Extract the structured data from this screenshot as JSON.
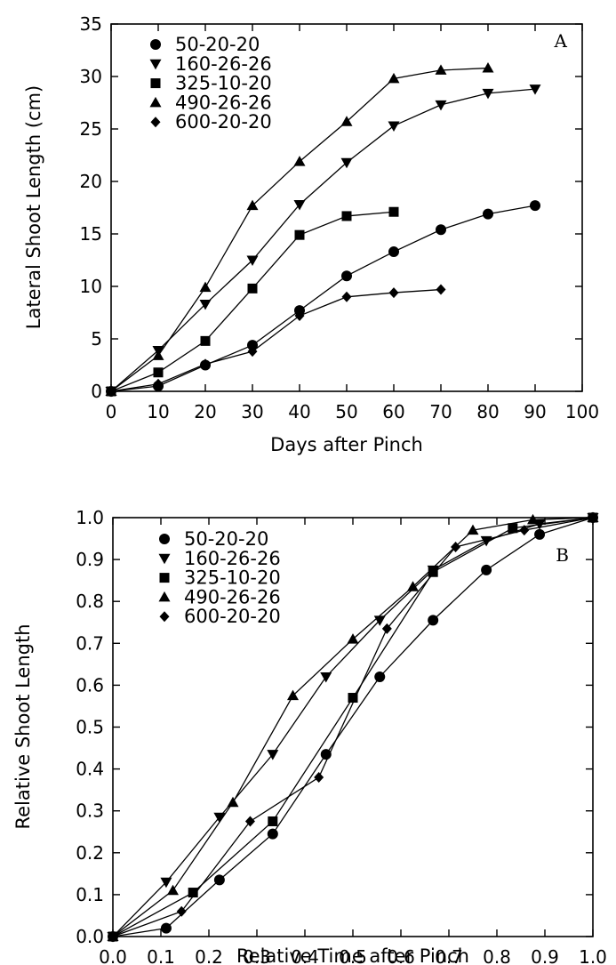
{
  "chart_data": [
    {
      "type": "line",
      "panel_letter": "A",
      "title": "",
      "xlabel": "Days after Pinch",
      "ylabel": "Lateral Shoot Length (cm)",
      "xlim": [
        0,
        100
      ],
      "ylim": [
        0,
        35
      ],
      "xticks": [
        0,
        10,
        20,
        30,
        40,
        50,
        60,
        70,
        80,
        90,
        100
      ],
      "yticks": [
        0,
        5,
        10,
        15,
        20,
        25,
        30,
        35
      ],
      "grid": false,
      "legend_position": "top-left",
      "series": [
        {
          "name": "50-20-20",
          "marker": "circle",
          "x": [
            0,
            10,
            20,
            30,
            40,
            50,
            60,
            70,
            80,
            90
          ],
          "y": [
            0,
            0.5,
            2.5,
            4.4,
            7.7,
            11.0,
            13.3,
            15.4,
            16.9,
            17.7
          ]
        },
        {
          "name": "160-26-26",
          "marker": "triangle-down",
          "x": [
            0,
            10,
            20,
            30,
            40,
            50,
            60,
            70,
            80,
            90
          ],
          "y": [
            0,
            3.9,
            8.3,
            12.5,
            17.8,
            21.8,
            25.3,
            27.3,
            28.4,
            28.8
          ]
        },
        {
          "name": "325-10-20",
          "marker": "square",
          "x": [
            0,
            10,
            20,
            30,
            40,
            50,
            60
          ],
          "y": [
            0,
            1.8,
            4.8,
            9.8,
            14.9,
            16.7,
            17.1
          ]
        },
        {
          "name": "490-26-26",
          "marker": "triangle-up",
          "x": [
            0,
            10,
            20,
            30,
            40,
            50,
            60,
            70,
            80
          ],
          "y": [
            0,
            3.4,
            9.9,
            17.7,
            21.9,
            25.7,
            29.8,
            30.6,
            30.8
          ]
        },
        {
          "name": "600-20-20",
          "marker": "diamond",
          "x": [
            0,
            10,
            20,
            30,
            40,
            50,
            60,
            70
          ],
          "y": [
            0,
            0.7,
            2.6,
            3.8,
            7.2,
            9.0,
            9.4,
            9.7
          ]
        }
      ]
    },
    {
      "type": "line",
      "panel_letter": "B",
      "title": "",
      "xlabel": "Relative Time after Pinch",
      "ylabel": "Relative Shoot Length",
      "xlim": [
        0,
        1
      ],
      "ylim": [
        0,
        1
      ],
      "xticks": [
        "0.0",
        "0.1",
        "0.2",
        "0.3",
        "0.4",
        "0.5",
        "0.6",
        "0.7",
        "0.8",
        "0.9",
        "1.0"
      ],
      "yticks": [
        "0.0",
        "0.1",
        "0.2",
        "0.3",
        "0.4",
        "0.5",
        "0.6",
        "0.7",
        "0.8",
        "0.9",
        "1.0"
      ],
      "grid": false,
      "legend_position": "top-left",
      "series": [
        {
          "name": "50-20-20",
          "marker": "circle",
          "x": [
            0,
            0.111,
            0.222,
            0.333,
            0.444,
            0.556,
            0.667,
            0.778,
            0.889,
            1.0
          ],
          "y": [
            0,
            0.02,
            0.135,
            0.245,
            0.435,
            0.62,
            0.755,
            0.875,
            0.96,
            1.0
          ]
        },
        {
          "name": "160-26-26",
          "marker": "triangle-down",
          "x": [
            0,
            0.111,
            0.222,
            0.333,
            0.444,
            0.556,
            0.667,
            0.778,
            0.889,
            1.0
          ],
          "y": [
            0,
            0.13,
            0.285,
            0.435,
            0.62,
            0.755,
            0.875,
            0.945,
            0.985,
            1.0
          ]
        },
        {
          "name": "325-10-20",
          "marker": "square",
          "x": [
            0,
            0.167,
            0.333,
            0.5,
            0.667,
            0.833,
            1.0
          ],
          "y": [
            0,
            0.105,
            0.275,
            0.57,
            0.87,
            0.975,
            1.0
          ]
        },
        {
          "name": "490-26-26",
          "marker": "triangle-up",
          "x": [
            0,
            0.125,
            0.25,
            0.375,
            0.5,
            0.625,
            0.75,
            0.875,
            1.0
          ],
          "y": [
            0,
            0.11,
            0.32,
            0.575,
            0.71,
            0.835,
            0.97,
            0.995,
            1.0
          ]
        },
        {
          "name": "600-20-20",
          "marker": "diamond",
          "x": [
            0,
            0.143,
            0.286,
            0.429,
            0.571,
            0.714,
            0.857,
            1.0
          ],
          "y": [
            0,
            0.06,
            0.275,
            0.38,
            0.735,
            0.93,
            0.97,
            1.0
          ]
        }
      ]
    }
  ]
}
